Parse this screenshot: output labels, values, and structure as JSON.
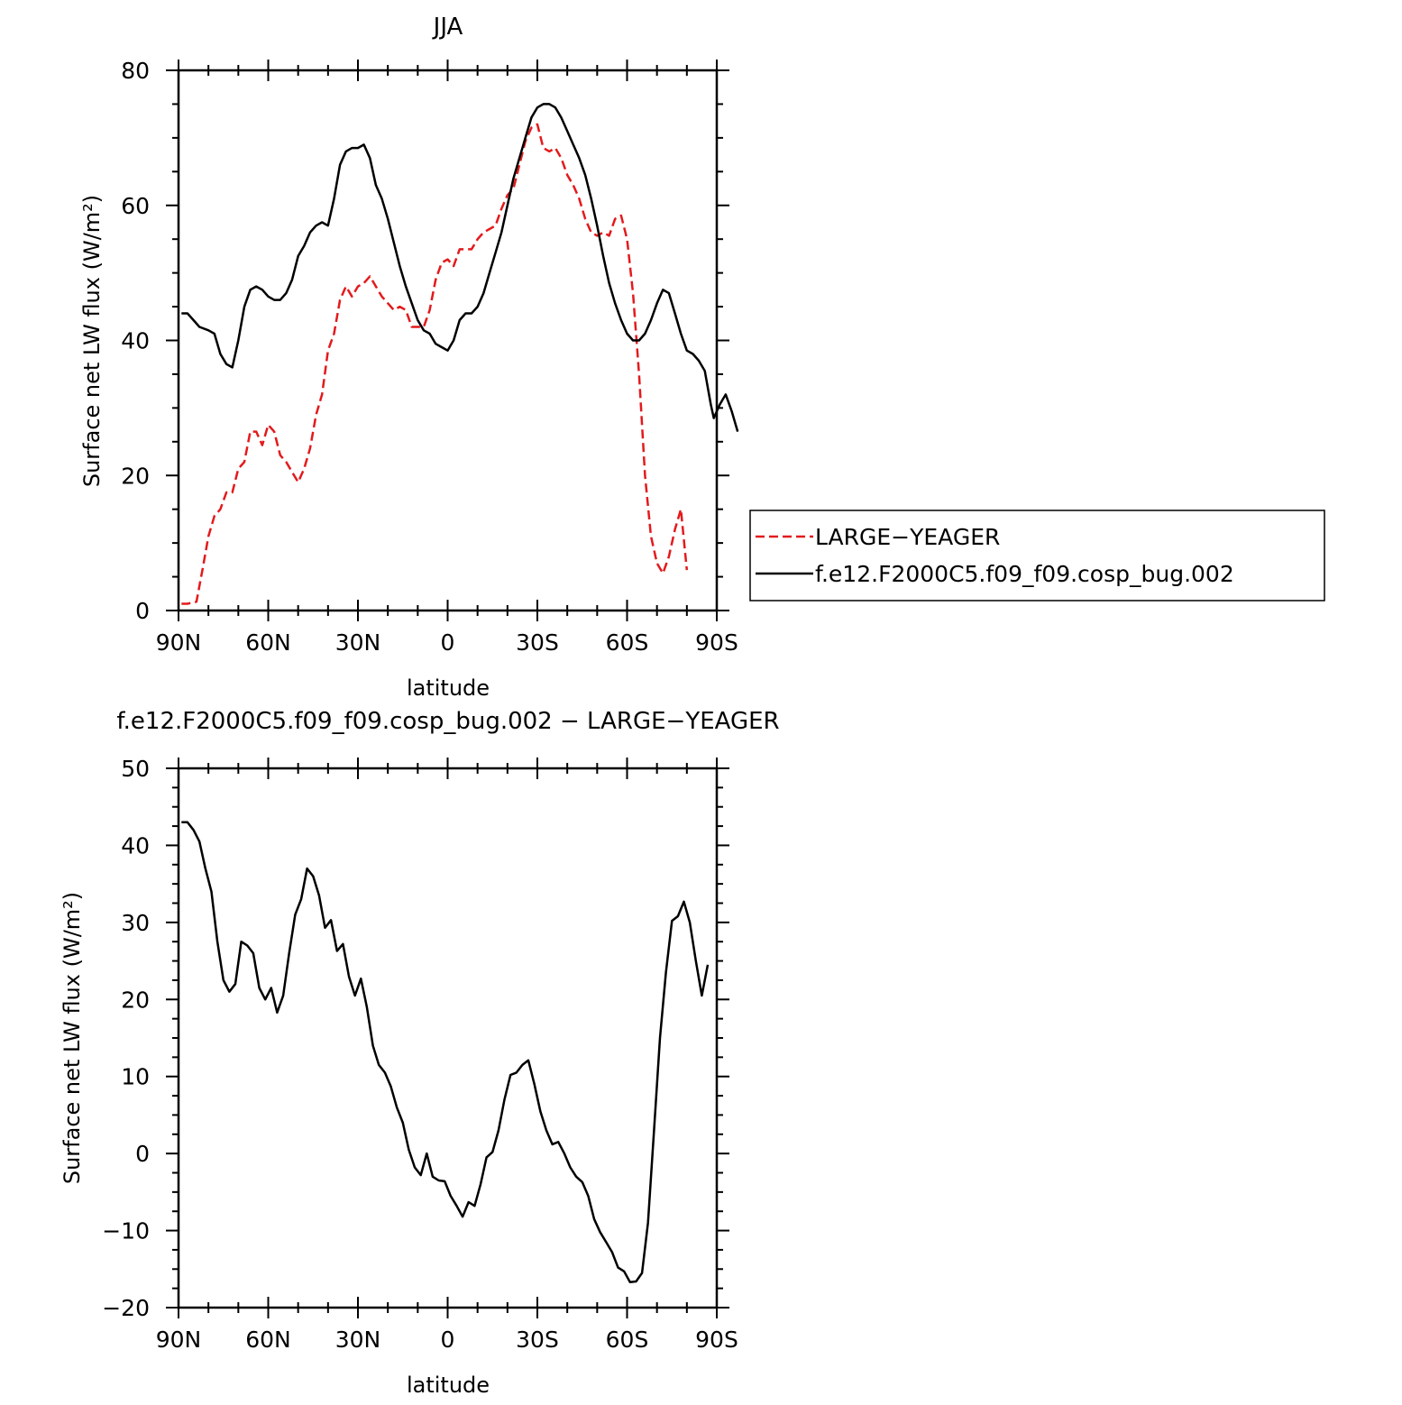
{
  "colors": {
    "red": "#e31a1c",
    "black": "#000000"
  },
  "chart_data": [
    {
      "type": "line",
      "title": "JJA",
      "xlabel": "latitude",
      "ylabel": "Surface net LW flux (W/m²)",
      "xlim": [
        90,
        -90
      ],
      "ylim": [
        0,
        80
      ],
      "x_ticks": [
        90,
        60,
        30,
        0,
        -30,
        -60,
        -90
      ],
      "x_tick_labels": [
        "90N",
        "60N",
        "30N",
        "0",
        "30S",
        "60S",
        "90S"
      ],
      "y_ticks": [
        0,
        20,
        40,
        60,
        80
      ],
      "y_tick_labels": [
        "0",
        "20",
        "40",
        "60",
        "80"
      ],
      "legend": {
        "placement": "right",
        "entries": [
          "LARGE−YEAGER",
          "f.e12.F2000C5.f09_f09.cosp_bug.002"
        ]
      },
      "series": [
        {
          "name": "LARGE−YEAGER",
          "color": "#e31a1c",
          "dash": "dashed",
          "points": [
            [
              89,
              1
            ],
            [
              87,
              1
            ],
            [
              84,
              1.3
            ],
            [
              82,
              6
            ],
            [
              80,
              11
            ],
            [
              78,
              14
            ],
            [
              76,
              15
            ],
            [
              74,
              17.5
            ],
            [
              72,
              17.5
            ],
            [
              70,
              21
            ],
            [
              68,
              22
            ],
            [
              66,
              26.5
            ],
            [
              64,
              26.5
            ],
            [
              62,
              24.5
            ],
            [
              60,
              27.5
            ],
            [
              58,
              26.5
            ],
            [
              56,
              23
            ],
            [
              54,
              22
            ],
            [
              52,
              20.5
            ],
            [
              50,
              19
            ],
            [
              48,
              21
            ],
            [
              46,
              24
            ],
            [
              44,
              29
            ],
            [
              42,
              32
            ],
            [
              40,
              38.5
            ],
            [
              38,
              41
            ],
            [
              36,
              46
            ],
            [
              34,
              48
            ],
            [
              32,
              46.5
            ],
            [
              30,
              48
            ],
            [
              28,
              48.5
            ],
            [
              26,
              49.5
            ],
            [
              24,
              48
            ],
            [
              22,
              46.5
            ],
            [
              20,
              45.5
            ],
            [
              18,
              44.5
            ],
            [
              16,
              45
            ],
            [
              14,
              44.5
            ],
            [
              12,
              42
            ],
            [
              10,
              42
            ],
            [
              8,
              42
            ],
            [
              6,
              44.5
            ],
            [
              4,
              49
            ],
            [
              2,
              51.5
            ],
            [
              0,
              52
            ],
            [
              -2,
              51
            ],
            [
              -4,
              53.5
            ],
            [
              -6,
              53.5
            ],
            [
              -8,
              53.5
            ],
            [
              -10,
              55
            ],
            [
              -12,
              56
            ],
            [
              -14,
              56.5
            ],
            [
              -16,
              57
            ],
            [
              -18,
              59.5
            ],
            [
              -20,
              61.5
            ],
            [
              -22,
              62.5
            ],
            [
              -24,
              66
            ],
            [
              -26,
              69.5
            ],
            [
              -28,
              71.5
            ],
            [
              -30,
              72
            ],
            [
              -32,
              68.5
            ],
            [
              -34,
              68
            ],
            [
              -36,
              68.5
            ],
            [
              -38,
              67
            ],
            [
              -40,
              64.5
            ],
            [
              -42,
              63
            ],
            [
              -44,
              61
            ],
            [
              -46,
              58
            ],
            [
              -48,
              56
            ],
            [
              -50,
              55.5
            ],
            [
              -52,
              56
            ],
            [
              -54,
              55.5
            ],
            [
              -56,
              58
            ],
            [
              -58,
              58.5
            ],
            [
              -60,
              55
            ],
            [
              -62,
              47
            ],
            [
              -64,
              35
            ],
            [
              -66,
              20
            ],
            [
              -68,
              11
            ],
            [
              -70,
              7
            ],
            [
              -72,
              5.5
            ],
            [
              -74,
              8
            ],
            [
              -76,
              12
            ],
            [
              -78,
              15
            ],
            [
              -80,
              6
            ]
          ]
        },
        {
          "name": "f.e12.F2000C5.f09_f09.cosp_bug.002",
          "color": "#000000",
          "dash": "solid",
          "points": [
            [
              89,
              44
            ],
            [
              87,
              44
            ],
            [
              85,
              43
            ],
            [
              83,
              42
            ],
            [
              80,
              41.5
            ],
            [
              78,
              41
            ],
            [
              76,
              38
            ],
            [
              74,
              36.5
            ],
            [
              72,
              36
            ],
            [
              70,
              40
            ],
            [
              68,
              45
            ],
            [
              66,
              47.5
            ],
            [
              64,
              48
            ],
            [
              62,
              47.5
            ],
            [
              60,
              46.5
            ],
            [
              58,
              46
            ],
            [
              56,
              46
            ],
            [
              54,
              47
            ],
            [
              52,
              49
            ],
            [
              50,
              52.5
            ],
            [
              48,
              54
            ],
            [
              46,
              56
            ],
            [
              44,
              57
            ],
            [
              42,
              57.5
            ],
            [
              40,
              57
            ],
            [
              38,
              61
            ],
            [
              36,
              66
            ],
            [
              34,
              68
            ],
            [
              32,
              68.5
            ],
            [
              30,
              68.5
            ],
            [
              28,
              69
            ],
            [
              26,
              67
            ],
            [
              24,
              63
            ],
            [
              22,
              61
            ],
            [
              20,
              58
            ],
            [
              18,
              54.5
            ],
            [
              16,
              51
            ],
            [
              14,
              48
            ],
            [
              12,
              45.5
            ],
            [
              10,
              43
            ],
            [
              8,
              41.5
            ],
            [
              6,
              41
            ],
            [
              4,
              39.5
            ],
            [
              2,
              39
            ],
            [
              0,
              38.5
            ],
            [
              -2,
              40
            ],
            [
              -4,
              43
            ],
            [
              -6,
              44
            ],
            [
              -8,
              44
            ],
            [
              -10,
              45
            ],
            [
              -12,
              47
            ],
            [
              -14,
              50
            ],
            [
              -16,
              53
            ],
            [
              -18,
              56
            ],
            [
              -20,
              60
            ],
            [
              -22,
              64
            ],
            [
              -24,
              67
            ],
            [
              -26,
              70
            ],
            [
              -28,
              73
            ],
            [
              -30,
              74.5
            ],
            [
              -32,
              75
            ],
            [
              -34,
              75
            ],
            [
              -36,
              74.5
            ],
            [
              -38,
              73
            ],
            [
              -40,
              71
            ],
            [
              -42,
              69
            ],
            [
              -44,
              67
            ],
            [
              -46,
              64.5
            ],
            [
              -48,
              61
            ],
            [
              -50,
              57
            ],
            [
              -52,
              52.5
            ],
            [
              -54,
              48.5
            ],
            [
              -56,
              45.5
            ],
            [
              -58,
              43
            ],
            [
              -60,
              41
            ],
            [
              -62,
              40
            ],
            [
              -64,
              40
            ],
            [
              -66,
              41
            ],
            [
              -68,
              43
            ],
            [
              -70,
              45.5
            ],
            [
              -72,
              47.5
            ],
            [
              -74,
              47
            ],
            [
              -76,
              44
            ],
            [
              -78,
              41
            ],
            [
              -80,
              38.5
            ],
            [
              -82,
              38
            ],
            [
              -84,
              37
            ],
            [
              -86,
              35.5
            ],
            [
              -88,
              30.5
            ],
            [
              -89,
              28.5
            ],
            [
              -91,
              30.5
            ],
            [
              -93,
              32
            ],
            [
              -95,
              29.5
            ],
            [
              -97,
              26.5
            ]
          ]
        }
      ]
    },
    {
      "type": "line",
      "title": "f.e12.F2000C5.f09_f09.cosp_bug.002 − LARGE−YEAGER",
      "xlabel": "latitude",
      "ylabel": "Surface net LW flux (W/m²)",
      "xlim": [
        90,
        -90
      ],
      "ylim": [
        -20,
        50
      ],
      "x_ticks": [
        90,
        60,
        30,
        0,
        -30,
        -60,
        -90
      ],
      "x_tick_labels": [
        "90N",
        "60N",
        "30N",
        "0",
        "30S",
        "60S",
        "90S"
      ],
      "y_ticks": [
        -20,
        -10,
        0,
        10,
        20,
        30,
        40,
        50
      ],
      "y_tick_labels": [
        "−20",
        "−10",
        "0",
        "10",
        "20",
        "30",
        "40",
        "50"
      ],
      "series": [
        {
          "color": "#000000",
          "dash": "solid",
          "points": [
            [
              89,
              43
            ],
            [
              87,
              43
            ],
            [
              85,
              42
            ],
            [
              83,
              40.5
            ],
            [
              81,
              37
            ],
            [
              79,
              34
            ],
            [
              77,
              27.5
            ],
            [
              75,
              22.5
            ],
            [
              73,
              21
            ],
            [
              71,
              22
            ],
            [
              69,
              27.5
            ],
            [
              67,
              27
            ],
            [
              65,
              26
            ],
            [
              63,
              21.5
            ],
            [
              61,
              20
            ],
            [
              59,
              21.5
            ],
            [
              57,
              18.3
            ],
            [
              55,
              20.5
            ],
            [
              53,
              26
            ],
            [
              51,
              31
            ],
            [
              49,
              33
            ],
            [
              47,
              37
            ],
            [
              45,
              36
            ],
            [
              43,
              33.5
            ],
            [
              41,
              29.3
            ],
            [
              39,
              30.3
            ],
            [
              37,
              26.3
            ],
            [
              35,
              27.2
            ],
            [
              33,
              23
            ],
            [
              31,
              20.5
            ],
            [
              29,
              22.7
            ],
            [
              27,
              19
            ],
            [
              25,
              14
            ],
            [
              23,
              11.5
            ],
            [
              21,
              10.5
            ],
            [
              19,
              8.7
            ],
            [
              17,
              6
            ],
            [
              15,
              4
            ],
            [
              13,
              0.5
            ],
            [
              11,
              -1.8
            ],
            [
              9,
              -2.8
            ],
            [
              7,
              0
            ],
            [
              5,
              -3
            ],
            [
              3,
              -3.5
            ],
            [
              1,
              -3.6
            ],
            [
              -1,
              -5.5
            ],
            [
              -3,
              -6.8
            ],
            [
              -5,
              -8.2
            ],
            [
              -7,
              -6.3
            ],
            [
              -9,
              -6.8
            ],
            [
              -11,
              -4
            ],
            [
              -13,
              -0.5
            ],
            [
              -15,
              0.2
            ],
            [
              -17,
              3
            ],
            [
              -19,
              7
            ],
            [
              -21,
              10.2
            ],
            [
              -23,
              10.5
            ],
            [
              -25,
              11.5
            ],
            [
              -27,
              12.1
            ],
            [
              -29,
              9
            ],
            [
              -31,
              5.5
            ],
            [
              -33,
              3
            ],
            [
              -35,
              1.2
            ],
            [
              -37,
              1.5
            ],
            [
              -39,
              0
            ],
            [
              -41,
              -1.8
            ],
            [
              -43,
              -3
            ],
            [
              -45,
              -3.7
            ],
            [
              -47,
              -5.5
            ],
            [
              -49,
              -8.5
            ],
            [
              -51,
              -10.2
            ],
            [
              -53,
              -11.5
            ],
            [
              -55,
              -12.8
            ],
            [
              -57,
              -14.8
            ],
            [
              -59,
              -15.3
            ],
            [
              -61,
              -16.7
            ],
            [
              -63,
              -16.6
            ],
            [
              -65,
              -15.5
            ],
            [
              -67,
              -9
            ],
            [
              -69,
              3
            ],
            [
              -71,
              15
            ],
            [
              -73,
              23.5
            ],
            [
              -75,
              30.2
            ],
            [
              -77,
              30.8
            ],
            [
              -79,
              32.7
            ],
            [
              -81,
              30
            ],
            [
              -83,
              25
            ],
            [
              -85,
              20.5
            ],
            [
              -87,
              24.5
            ]
          ]
        }
      ]
    }
  ]
}
